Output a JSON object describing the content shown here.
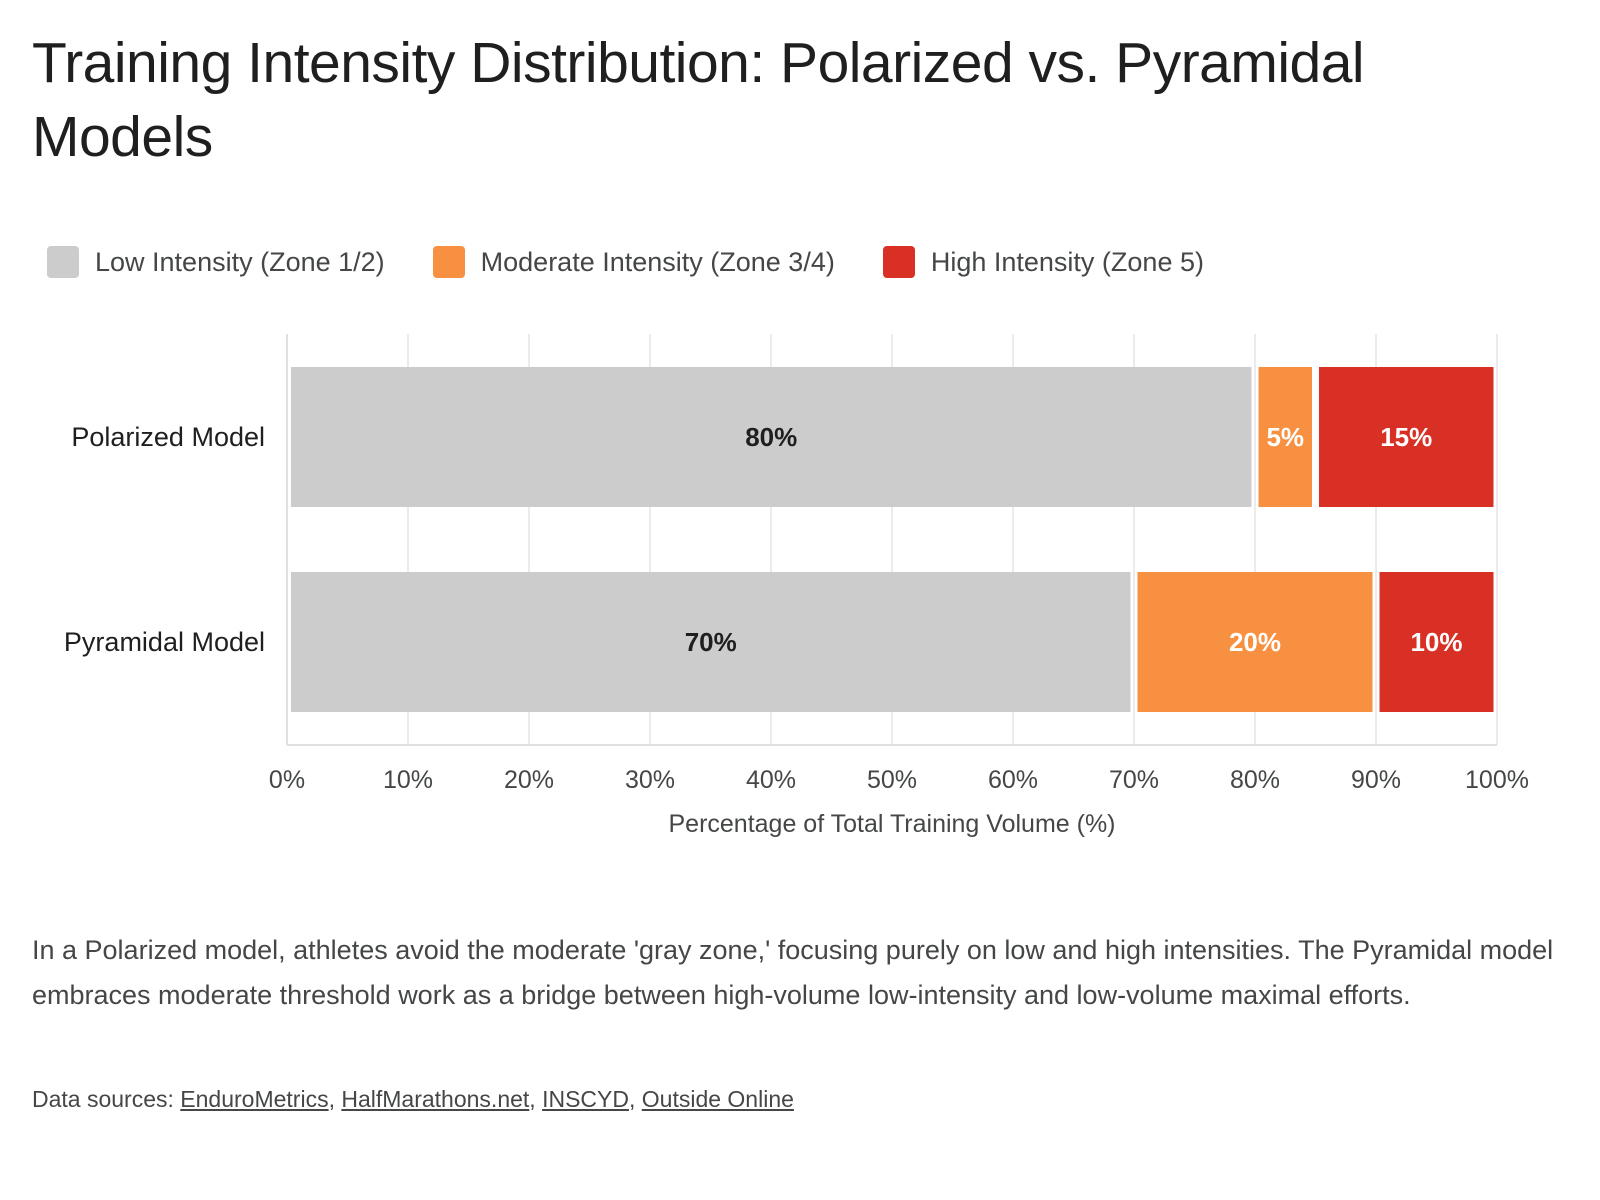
{
  "title": "Training Intensity Distribution: Polarized vs. Pyramidal Models",
  "legend": [
    {
      "label": "Low Intensity (Zone 1/2)",
      "color": "#cccccc"
    },
    {
      "label": "Moderate Intensity (Zone 3/4)",
      "color": "#f79141"
    },
    {
      "label": "High Intensity (Zone 5)",
      "color": "#d93025"
    }
  ],
  "chart_data": {
    "type": "bar",
    "orientation": "horizontal",
    "stacked": true,
    "categories": [
      "Polarized Model",
      "Pyramidal Model"
    ],
    "series": [
      {
        "name": "Low Intensity (Zone 1/2)",
        "values": [
          80,
          70
        ],
        "color": "#cccccc",
        "label_color": "#1f1f1f"
      },
      {
        "name": "Moderate Intensity (Zone 3/4)",
        "values": [
          5,
          20
        ],
        "color": "#f79141",
        "label_color": "#ffffff"
      },
      {
        "name": "High Intensity (Zone 5)",
        "values": [
          15,
          10
        ],
        "color": "#d93025",
        "label_color": "#ffffff"
      }
    ],
    "data_labels": [
      [
        "80%",
        "70%"
      ],
      [
        "5%",
        "20%"
      ],
      [
        "15%",
        "10%"
      ]
    ],
    "xlim": [
      0,
      100
    ],
    "xticks": [
      "0%",
      "10%",
      "20%",
      "30%",
      "40%",
      "50%",
      "60%",
      "70%",
      "80%",
      "90%",
      "100%"
    ],
    "xlabel": "Percentage of Total Training Volume (%)",
    "ylabel": "",
    "grid": true,
    "legend_position": "top-left"
  },
  "description": "In a Polarized model, athletes avoid the moderate 'gray zone,' focusing purely on low and high intensities. The Pyramidal model embraces moderate threshold work as a bridge between high-volume low-intensity and low-volume maximal efforts.",
  "sources": {
    "prefix": "Data sources: ",
    "links": [
      "EnduroMetrics",
      "HalfMarathons.net",
      "INSCYD",
      "Outside Online"
    ],
    "separator": ", "
  }
}
